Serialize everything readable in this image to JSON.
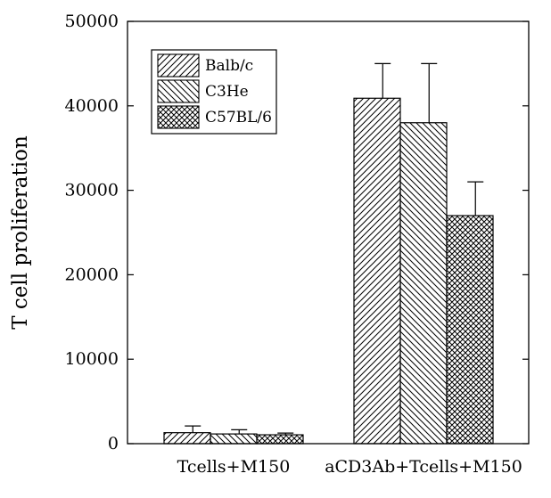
{
  "chart_data": {
    "type": "bar",
    "title": "",
    "xlabel": "",
    "ylabel": "T cell proliferation",
    "categories": [
      "Tcells+M150",
      "aCD3Ab+Tcells+M150"
    ],
    "series": [
      {
        "name": "Balb/c",
        "values": [
          1300,
          40900
        ],
        "error": [
          800,
          4100
        ],
        "pattern": "hatch-forward"
      },
      {
        "name": "C3He",
        "values": [
          1150,
          38000
        ],
        "error": [
          500,
          7000
        ],
        "pattern": "hatch-backward"
      },
      {
        "name": "C57BL/6",
        "values": [
          1050,
          27000
        ],
        "error": [
          200,
          4000
        ],
        "pattern": "crosshatch"
      }
    ],
    "ylim": [
      0,
      50000
    ],
    "yticks": [
      0,
      10000,
      20000,
      30000,
      40000,
      50000
    ],
    "grid": false,
    "legend_position": "top-left",
    "colors": {
      "bar_fill": "#ffffff",
      "stroke": "#000000"
    }
  }
}
